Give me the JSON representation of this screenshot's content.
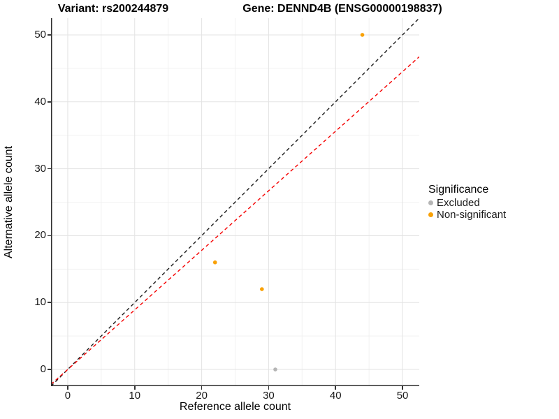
{
  "titles": {
    "variant": "Variant: rs200244879",
    "gene": "Gene: DENND4B (ENSG00000198837)"
  },
  "chart_data": {
    "type": "scatter",
    "title_left": "Variant: rs200244879",
    "title_right": "Gene: DENND4B (ENSG00000198837)",
    "xlabel": "Reference allele count",
    "ylabel": "Alternative allele count",
    "xlim": [
      -2.5,
      52.5
    ],
    "ylim": [
      -2.5,
      52.5
    ],
    "ticks_major": [
      0,
      10,
      20,
      30,
      40,
      50
    ],
    "ticks_minor": [
      5,
      15,
      25,
      35,
      45
    ],
    "grid": true,
    "grid_major_color": "#e3e3e3",
    "grid_minor_color": "#f1f1f1",
    "axis_color": "#2f2f2f",
    "series": [
      {
        "name": "Excluded",
        "color": "#b5b5b5",
        "points": [
          [
            31,
            0
          ]
        ]
      },
      {
        "name": "Non-significant",
        "color": "#f9a106",
        "points": [
          [
            22,
            16
          ],
          [
            29,
            12
          ],
          [
            44,
            50
          ]
        ]
      }
    ],
    "lines": [
      {
        "name": "identity-line",
        "color": "#1a1a1a",
        "slope": 1,
        "intercept": 0,
        "dash": "5,4"
      },
      {
        "name": "expected-ratio-line",
        "color": "#f50000",
        "slope": 0.89,
        "intercept": 0,
        "dash": "5,4"
      }
    ],
    "legend": {
      "title": "Significance",
      "position": "right",
      "entries": [
        {
          "label": "Excluded",
          "color": "#b5b5b5"
        },
        {
          "label": "Non-significant",
          "color": "#f9a106"
        }
      ]
    }
  }
}
